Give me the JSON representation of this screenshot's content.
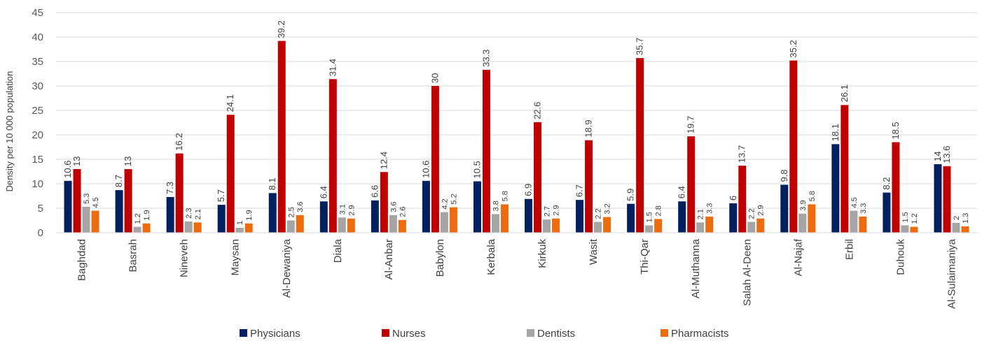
{
  "chart_data": {
    "type": "bar",
    "ylabel": "Density per 10 000 population",
    "xlabel": "",
    "ylim": [
      0,
      45
    ],
    "yticks": [
      0,
      5,
      10,
      15,
      20,
      25,
      30,
      35,
      40,
      45
    ],
    "grid": true,
    "legend_position": "bottom",
    "categories": [
      "Baghdad",
      "Basrah",
      "Nineveh",
      "Maysan",
      "Al-Dewaniya",
      "Diala",
      "Al-Anbar",
      "Babylon",
      "Kerbala",
      "Kirkuk",
      "Wasit",
      "Thi-Qar",
      "Al-Muthanna",
      "Salah Al-Deen",
      "Al-Najaf",
      "Erbil",
      "Duhouk",
      "Al-Sulaimaniya"
    ],
    "series": [
      {
        "name": "Physicians",
        "color": "#002060",
        "values": [
          10.6,
          8.7,
          7.3,
          5.7,
          8.1,
          6.4,
          6.6,
          10.6,
          10.5,
          6.9,
          6.7,
          5.9,
          6.4,
          6,
          9.8,
          18.1,
          8.2,
          14
        ]
      },
      {
        "name": "Nurses",
        "color": "#C00000",
        "values": [
          13,
          13,
          16.2,
          24.1,
          39.2,
          31.4,
          12.4,
          30,
          33.3,
          22.6,
          18.9,
          35.7,
          19.7,
          13.7,
          35.2,
          26.1,
          18.5,
          13.6
        ]
      },
      {
        "name": "Dentists",
        "color": "#A5A5A5",
        "values": [
          5.3,
          1.2,
          2.3,
          1,
          2.5,
          3.1,
          3.6,
          4.2,
          3.8,
          2.7,
          2.2,
          1.5,
          2.1,
          2.2,
          3.9,
          4.5,
          1.5,
          2
        ]
      },
      {
        "name": "Pharmacists",
        "color": "#ED6C0F",
        "values": [
          4.5,
          1.9,
          2.1,
          1.9,
          3.6,
          2.9,
          2.6,
          5.2,
          5.8,
          2.9,
          3.2,
          2.8,
          3.3,
          2.9,
          5.8,
          3.3,
          1.2,
          1.3
        ]
      }
    ]
  }
}
